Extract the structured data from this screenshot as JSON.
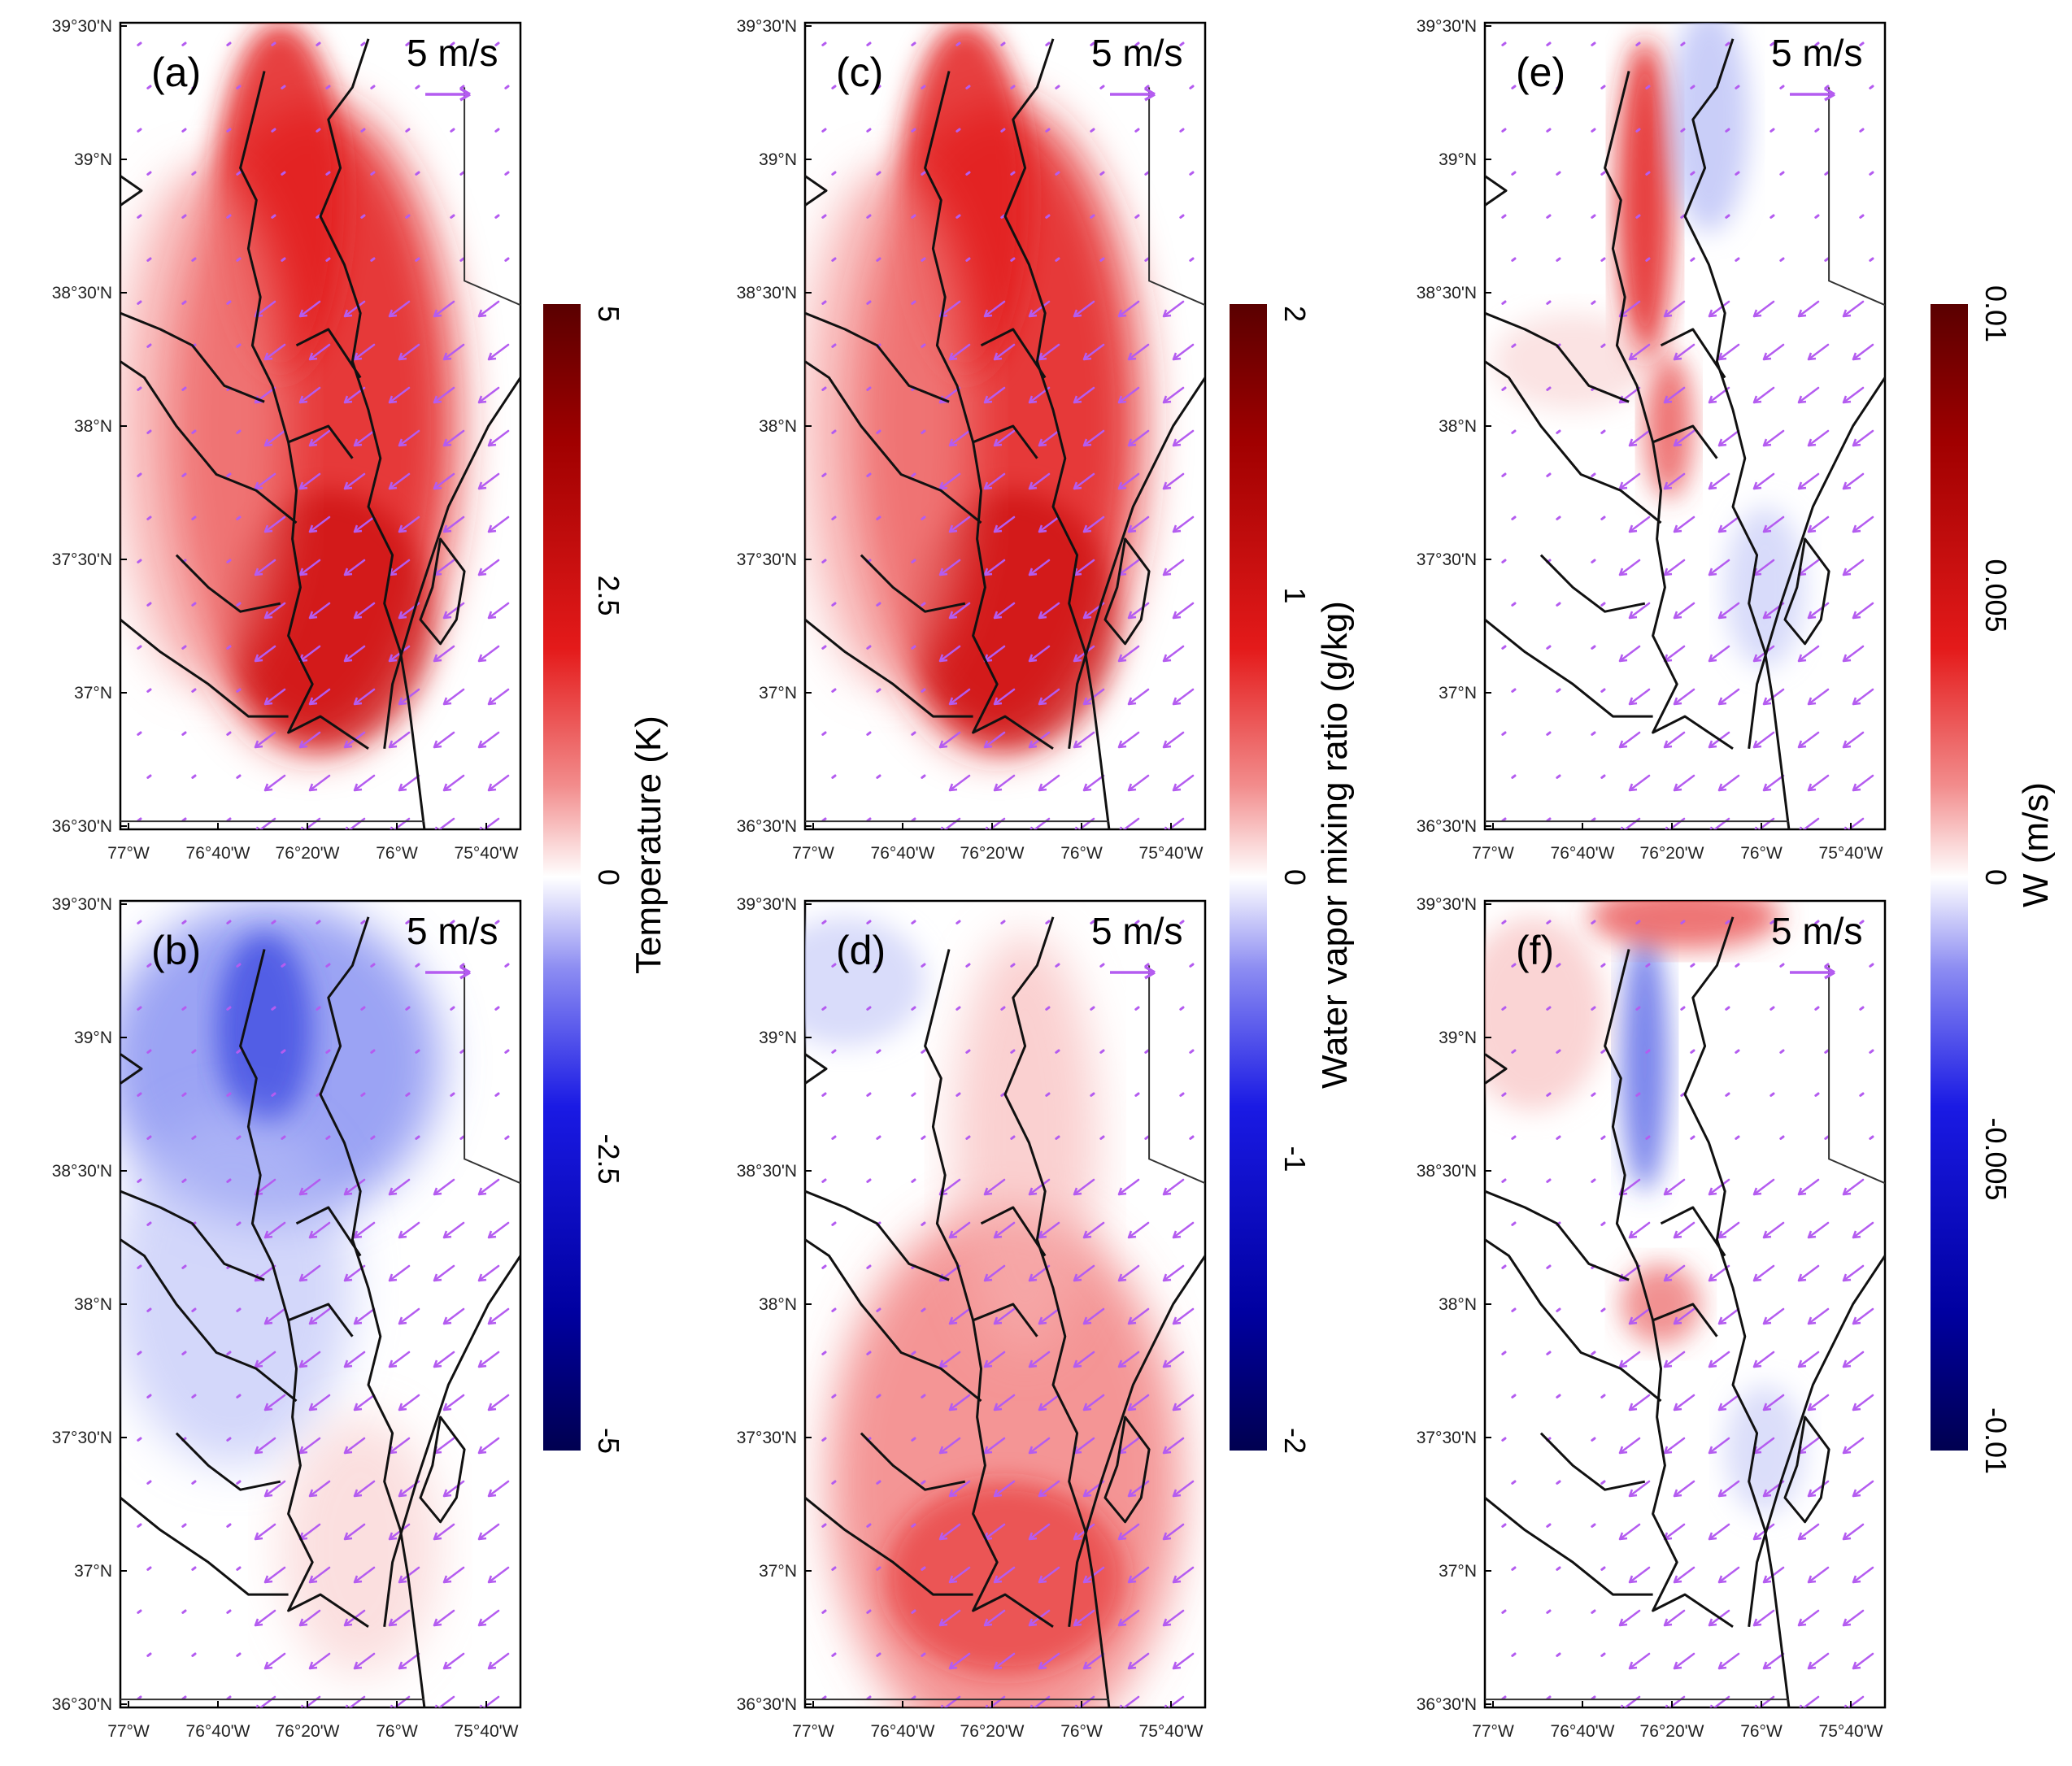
{
  "chart_data": {
    "type": "map",
    "lon_ticks": [
      "77°W",
      "76°40'W",
      "76°20'W",
      "76°W",
      "75°40'W"
    ],
    "lat_ticks": [
      "39°30'N",
      "39°N",
      "38°30'N",
      "38°N",
      "37°30'N",
      "37°N",
      "36°30'N"
    ],
    "vector_reference": {
      "label": "5 m/s",
      "color": "#b45cf0"
    },
    "panels": [
      {
        "id": "a",
        "label": "(a)",
        "variable": "Temperature",
        "pattern": "warm",
        "anomaly": 4.0
      },
      {
        "id": "b",
        "label": "(b)",
        "variable": "Temperature",
        "pattern": "cool-north",
        "anomaly": -2.0
      },
      {
        "id": "c",
        "label": "(c)",
        "variable": "Water vapor mixing ratio",
        "pattern": "warm",
        "anomaly": 1.6
      },
      {
        "id": "d",
        "label": "(d)",
        "variable": "Water vapor mixing ratio",
        "pattern": "plume",
        "anomaly": 0.7
      },
      {
        "id": "e",
        "label": "(e)",
        "variable": "W",
        "pattern": "narrow",
        "anomaly": 0.006
      },
      {
        "id": "f",
        "label": "(f)",
        "variable": "W",
        "pattern": "mixed",
        "anomaly": 0.004
      }
    ],
    "colorbars": [
      {
        "title": "Temperature (K)",
        "ticks": [
          "5",
          "2.5",
          "0",
          "-2.5",
          "-5"
        ],
        "min": -5,
        "max": 5
      },
      {
        "title": "Water vapor mixing ratio (g/kg)",
        "ticks": [
          "2",
          "1",
          "0",
          "-1",
          "-2"
        ],
        "min": -2,
        "max": 2
      },
      {
        "title": "W (m/s)",
        "ticks": [
          "0.01",
          "0.005",
          "0",
          "-0.005",
          "-0.01"
        ],
        "min": -0.01,
        "max": 0.01
      }
    ],
    "colors": {
      "positive": "#c00000",
      "negative": "#0a1aa0",
      "vector": "#b45cf0"
    }
  }
}
